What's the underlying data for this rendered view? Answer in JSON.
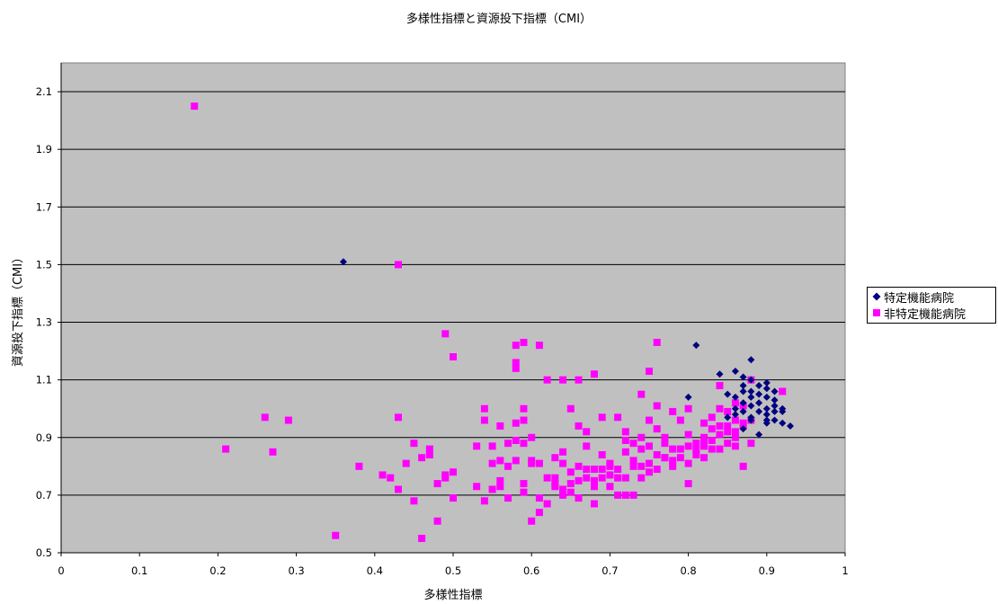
{
  "chart_data": {
    "type": "scatter",
    "title": "多様性指標と資源投下指標（CMI）",
    "xlabel": "多様性指標",
    "ylabel": "資源投下指標（CMI）",
    "xlim": [
      0,
      1
    ],
    "ylim": [
      0.5,
      2.2
    ],
    "xticks": [
      0,
      0.1,
      0.2,
      0.3,
      0.4,
      0.5,
      0.6,
      0.7,
      0.8,
      0.9,
      1
    ],
    "xtick_labels": [
      "0",
      "0.1",
      "0.2",
      "0.3",
      "0.4",
      "0.5",
      "0.6",
      "0.7",
      "0.8",
      "0.9",
      "1"
    ],
    "yticks": [
      0.5,
      0.7,
      0.9,
      1.1,
      1.3,
      1.5,
      1.7,
      1.9,
      2.1
    ],
    "ytick_labels": [
      "0.5",
      "0.7",
      "0.9",
      "1.1",
      "1.3",
      "1.5",
      "1.7",
      "1.9",
      "2.1"
    ],
    "grid": "horizontal",
    "plot_background": "#c0c0c0",
    "legend_position": "right",
    "series": [
      {
        "name": "特定機能病院",
        "marker": "diamond",
        "color": "#000080",
        "points": [
          [
            0.36,
            1.51
          ],
          [
            0.81,
            1.22
          ],
          [
            0.8,
            1.04
          ],
          [
            0.84,
            1.12
          ],
          [
            0.86,
            1.13
          ],
          [
            0.88,
            1.17
          ],
          [
            0.85,
            1.05
          ],
          [
            0.86,
            1.0
          ],
          [
            0.87,
            1.06
          ],
          [
            0.87,
            1.08
          ],
          [
            0.88,
            1.1
          ],
          [
            0.88,
            1.04
          ],
          [
            0.88,
            1.01
          ],
          [
            0.87,
            0.99
          ],
          [
            0.88,
            1.06
          ],
          [
            0.89,
            1.08
          ],
          [
            0.89,
            1.05
          ],
          [
            0.9,
            1.07
          ],
          [
            0.9,
            1.04
          ],
          [
            0.91,
            1.06
          ],
          [
            0.91,
            1.01
          ],
          [
            0.9,
            0.98
          ],
          [
            0.91,
            0.96
          ],
          [
            0.91,
            0.99
          ],
          [
            0.92,
            0.95
          ],
          [
            0.92,
            1.0
          ],
          [
            0.93,
            0.94
          ],
          [
            0.89,
            0.91
          ],
          [
            0.9,
            1.09
          ],
          [
            0.87,
            1.11
          ],
          [
            0.86,
            0.98
          ],
          [
            0.88,
            0.96
          ],
          [
            0.87,
            0.93
          ],
          [
            0.9,
            0.95
          ],
          [
            0.85,
            0.97
          ],
          [
            0.86,
            1.04
          ],
          [
            0.92,
            0.99
          ],
          [
            0.91,
            1.03
          ],
          [
            0.89,
            1.02
          ],
          [
            0.88,
            0.97
          ],
          [
            0.9,
            1.0
          ],
          [
            0.87,
            1.02
          ],
          [
            0.89,
            0.99
          ],
          [
            0.9,
            0.96
          ]
        ]
      },
      {
        "name": "非特定機能病院",
        "marker": "square",
        "color": "#ff00ff",
        "points": [
          [
            0.17,
            2.05
          ],
          [
            0.43,
            1.5
          ],
          [
            0.21,
            0.86
          ],
          [
            0.26,
            0.97
          ],
          [
            0.27,
            0.85
          ],
          [
            0.29,
            0.96
          ],
          [
            0.35,
            0.56
          ],
          [
            0.38,
            0.8
          ],
          [
            0.41,
            0.77
          ],
          [
            0.42,
            0.76
          ],
          [
            0.43,
            0.72
          ],
          [
            0.43,
            0.97
          ],
          [
            0.44,
            0.81
          ],
          [
            0.45,
            0.88
          ],
          [
            0.45,
            0.68
          ],
          [
            0.46,
            0.55
          ],
          [
            0.46,
            0.83
          ],
          [
            0.47,
            0.86
          ],
          [
            0.47,
            0.84
          ],
          [
            0.48,
            0.74
          ],
          [
            0.48,
            0.61
          ],
          [
            0.49,
            1.26
          ],
          [
            0.49,
            0.76
          ],
          [
            0.49,
            0.77
          ],
          [
            0.5,
            0.78
          ],
          [
            0.5,
            0.69
          ],
          [
            0.5,
            1.18
          ],
          [
            0.53,
            0.73
          ],
          [
            0.53,
            0.87
          ],
          [
            0.54,
            0.96
          ],
          [
            0.54,
            1.0
          ],
          [
            0.54,
            0.68
          ],
          [
            0.55,
            0.81
          ],
          [
            0.55,
            0.72
          ],
          [
            0.56,
            0.73
          ],
          [
            0.56,
            0.75
          ],
          [
            0.56,
            0.94
          ],
          [
            0.57,
            0.8
          ],
          [
            0.57,
            0.69
          ],
          [
            0.58,
            0.89
          ],
          [
            0.58,
            0.95
          ],
          [
            0.58,
            1.22
          ],
          [
            0.58,
            1.14
          ],
          [
            0.58,
            1.16
          ],
          [
            0.58,
            0.82
          ],
          [
            0.59,
            1.23
          ],
          [
            0.59,
            0.96
          ],
          [
            0.59,
            1.0
          ],
          [
            0.59,
            0.88
          ],
          [
            0.59,
            0.71
          ],
          [
            0.59,
            0.74
          ],
          [
            0.6,
            0.61
          ],
          [
            0.6,
            0.9
          ],
          [
            0.6,
            0.82
          ],
          [
            0.6,
            0.81
          ],
          [
            0.61,
            0.64
          ],
          [
            0.61,
            0.69
          ],
          [
            0.61,
            1.22
          ],
          [
            0.62,
            1.1
          ],
          [
            0.62,
            0.67
          ],
          [
            0.63,
            0.74
          ],
          [
            0.63,
            0.83
          ],
          [
            0.63,
            0.76
          ],
          [
            0.64,
            0.7
          ],
          [
            0.64,
            0.72
          ],
          [
            0.64,
            0.81
          ],
          [
            0.64,
            0.85
          ],
          [
            0.64,
            1.1
          ],
          [
            0.65,
            1.0
          ],
          [
            0.65,
            0.78
          ],
          [
            0.65,
            0.71
          ],
          [
            0.66,
            0.69
          ],
          [
            0.66,
            1.1
          ],
          [
            0.66,
            0.8
          ],
          [
            0.66,
            0.94
          ],
          [
            0.67,
            0.76
          ],
          [
            0.67,
            0.79
          ],
          [
            0.67,
            0.92
          ],
          [
            0.67,
            0.87
          ],
          [
            0.68,
            0.73
          ],
          [
            0.68,
            0.67
          ],
          [
            0.68,
            0.75
          ],
          [
            0.68,
            1.12
          ],
          [
            0.69,
            0.97
          ],
          [
            0.69,
            0.79
          ],
          [
            0.69,
            0.84
          ],
          [
            0.7,
            0.81
          ],
          [
            0.7,
            0.77
          ],
          [
            0.7,
            0.8
          ],
          [
            0.71,
            0.97
          ],
          [
            0.71,
            0.76
          ],
          [
            0.71,
            0.7
          ],
          [
            0.72,
            0.7
          ],
          [
            0.72,
            0.92
          ],
          [
            0.72,
            0.89
          ],
          [
            0.72,
            0.85
          ],
          [
            0.73,
            0.7
          ],
          [
            0.73,
            0.88
          ],
          [
            0.73,
            0.82
          ],
          [
            0.74,
            1.05
          ],
          [
            0.74,
            0.9
          ],
          [
            0.74,
            0.8
          ],
          [
            0.74,
            0.86
          ],
          [
            0.75,
            0.96
          ],
          [
            0.75,
            1.13
          ],
          [
            0.75,
            0.81
          ],
          [
            0.75,
            0.87
          ],
          [
            0.76,
            1.23
          ],
          [
            0.76,
            1.01
          ],
          [
            0.76,
            0.93
          ],
          [
            0.76,
            0.79
          ],
          [
            0.76,
            0.84
          ],
          [
            0.77,
            0.83
          ],
          [
            0.77,
            0.9
          ],
          [
            0.77,
            0.88
          ],
          [
            0.78,
            0.99
          ],
          [
            0.78,
            0.82
          ],
          [
            0.78,
            0.8
          ],
          [
            0.79,
            0.96
          ],
          [
            0.79,
            0.86
          ],
          [
            0.8,
            1.0
          ],
          [
            0.8,
            0.91
          ],
          [
            0.8,
            0.87
          ],
          [
            0.8,
            0.74
          ],
          [
            0.8,
            0.81
          ],
          [
            0.81,
            0.88
          ],
          [
            0.81,
            0.84
          ],
          [
            0.82,
            0.95
          ],
          [
            0.82,
            0.9
          ],
          [
            0.82,
            0.87
          ],
          [
            0.82,
            0.83
          ],
          [
            0.83,
            0.97
          ],
          [
            0.83,
            0.93
          ],
          [
            0.83,
            0.89
          ],
          [
            0.84,
            1.08
          ],
          [
            0.84,
            1.0
          ],
          [
            0.84,
            0.94
          ],
          [
            0.84,
            0.86
          ],
          [
            0.85,
            0.99
          ],
          [
            0.85,
            0.92
          ],
          [
            0.85,
            0.88
          ],
          [
            0.86,
            1.02
          ],
          [
            0.86,
            0.96
          ],
          [
            0.86,
            0.9
          ],
          [
            0.86,
            0.87
          ],
          [
            0.87,
            0.8
          ],
          [
            0.87,
            1.01
          ],
          [
            0.87,
            0.95
          ],
          [
            0.88,
            0.88
          ],
          [
            0.88,
            1.1
          ],
          [
            0.92,
            1.06
          ],
          [
            0.88,
            0.96
          ],
          [
            0.87,
            0.94
          ],
          [
            0.86,
            0.92
          ],
          [
            0.85,
            0.94
          ],
          [
            0.84,
            0.91
          ],
          [
            0.83,
            0.86
          ],
          [
            0.82,
            0.89
          ],
          [
            0.81,
            0.86
          ],
          [
            0.79,
            0.83
          ],
          [
            0.78,
            0.86
          ],
          [
            0.77,
            0.83
          ],
          [
            0.75,
            0.78
          ],
          [
            0.74,
            0.76
          ],
          [
            0.73,
            0.8
          ],
          [
            0.72,
            0.76
          ],
          [
            0.71,
            0.79
          ],
          [
            0.7,
            0.73
          ],
          [
            0.69,
            0.76
          ],
          [
            0.68,
            0.79
          ],
          [
            0.66,
            0.75
          ],
          [
            0.65,
            0.74
          ],
          [
            0.63,
            0.73
          ],
          [
            0.62,
            0.76
          ],
          [
            0.61,
            0.81
          ],
          [
            0.57,
            0.88
          ],
          [
            0.56,
            0.82
          ],
          [
            0.55,
            0.87
          ]
        ]
      }
    ]
  }
}
